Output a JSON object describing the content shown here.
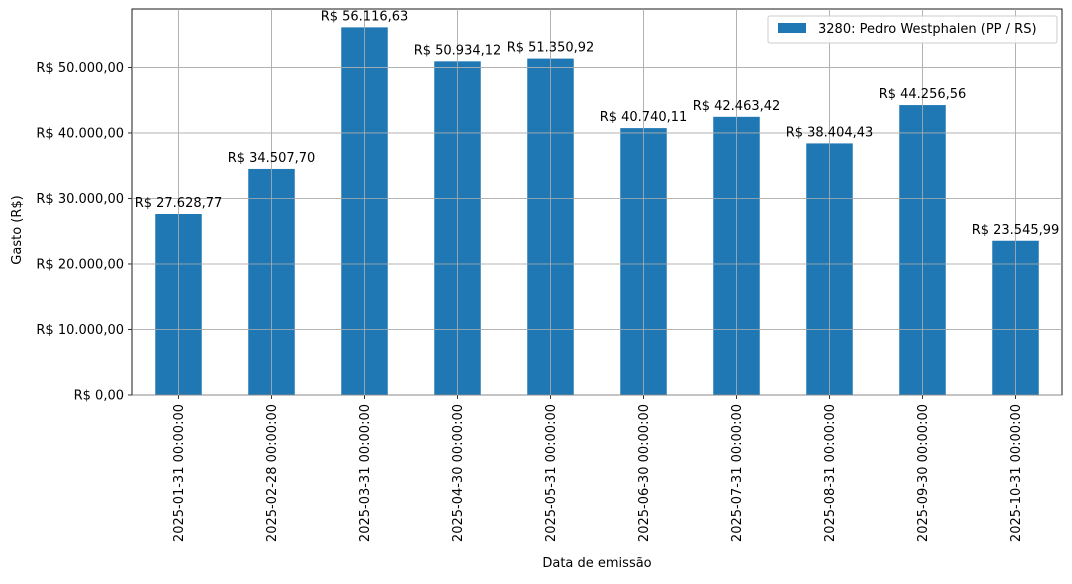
{
  "chart_data": {
    "type": "bar",
    "title": "",
    "xlabel": "Data de emissão",
    "ylabel": "Gasto (R$)",
    "ylim": [
      0,
      58922.46
    ],
    "categories": [
      "2025-01-31 00:00:00",
      "2025-02-28 00:00:00",
      "2025-03-31 00:00:00",
      "2025-04-30 00:00:00",
      "2025-05-31 00:00:00",
      "2025-06-30 00:00:00",
      "2025-07-31 00:00:00",
      "2025-08-31 00:00:00",
      "2025-09-30 00:00:00",
      "2025-10-31 00:00:00"
    ],
    "series": [
      {
        "name": "3280: Pedro Westphalen (PP / RS)",
        "color": "#1f77b4",
        "values": [
          27628.77,
          34507.7,
          56116.63,
          50934.12,
          51350.92,
          40740.11,
          42463.42,
          38404.43,
          44256.56,
          23545.99
        ],
        "labels": [
          "R$ 27.628,77",
          "R$ 34.507,70",
          "R$ 56.116,63",
          "R$ 50.934,12",
          "R$ 51.350,92",
          "R$ 40.740,11",
          "R$ 42.463,42",
          "R$ 38.404,43",
          "R$ 44.256,56",
          "R$ 23.545,99"
        ]
      }
    ],
    "y_ticks": [
      {
        "value": 0,
        "label": "R$ 0,00"
      },
      {
        "value": 10000,
        "label": "R$ 10.000,00"
      },
      {
        "value": 20000,
        "label": "R$ 20.000,00"
      },
      {
        "value": 30000,
        "label": "R$ 30.000,00"
      },
      {
        "value": 40000,
        "label": "R$ 40.000,00"
      },
      {
        "value": 50000,
        "label": "R$ 50.000,00"
      }
    ],
    "grid": true,
    "legend_position": "top-right"
  }
}
